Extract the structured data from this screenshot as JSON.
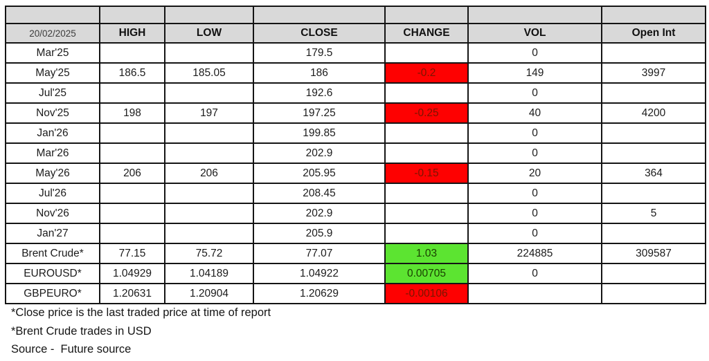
{
  "colors": {
    "header_bg": "#d9d9d9",
    "negative_bg": "#fe0101",
    "negative_text": "#7a1500",
    "positive_bg": "#5ce431",
    "positive_text": "#1a4000",
    "border": "#141414"
  },
  "table": {
    "date_label": "20/02/2025",
    "columns": [
      "HIGH",
      "LOW",
      "CLOSE",
      "CHANGE",
      "VOL",
      "Open Int"
    ],
    "rows": [
      {
        "label": "Mar'25",
        "high": "",
        "low": "",
        "close": "179.5",
        "change": "",
        "change_state": "none",
        "vol": "0",
        "open_int": ""
      },
      {
        "label": "May'25",
        "high": "186.5",
        "low": "185.05",
        "close": "186",
        "change": "-0.2",
        "change_state": "negative",
        "vol": "149",
        "open_int": "3997"
      },
      {
        "label": "Jul'25",
        "high": "",
        "low": "",
        "close": "192.6",
        "change": "",
        "change_state": "none",
        "vol": "0",
        "open_int": ""
      },
      {
        "label": "Nov'25",
        "high": "198",
        "low": "197",
        "close": "197.25",
        "change": "-0.25",
        "change_state": "negative",
        "vol": "40",
        "open_int": "4200"
      },
      {
        "label": "Jan'26",
        "high": "",
        "low": "",
        "close": "199.85",
        "change": "",
        "change_state": "none",
        "vol": "0",
        "open_int": ""
      },
      {
        "label": "Mar'26",
        "high": "",
        "low": "",
        "close": "202.9",
        "change": "",
        "change_state": "none",
        "vol": "0",
        "open_int": ""
      },
      {
        "label": "May'26",
        "high": "206",
        "low": "206",
        "close": "205.95",
        "change": "-0.15",
        "change_state": "negative",
        "vol": "20",
        "open_int": "364"
      },
      {
        "label": "Jul'26",
        "high": "",
        "low": "",
        "close": "208.45",
        "change": "",
        "change_state": "none",
        "vol": "0",
        "open_int": ""
      },
      {
        "label": "Nov'26",
        "high": "",
        "low": "",
        "close": "202.9",
        "change": "",
        "change_state": "none",
        "vol": "0",
        "open_int": "5"
      },
      {
        "label": "Jan'27",
        "high": "",
        "low": "",
        "close": "205.9",
        "change": "",
        "change_state": "none",
        "vol": "0",
        "open_int": ""
      },
      {
        "label": "Brent Crude*",
        "high": "77.15",
        "low": "75.72",
        "close": "77.07",
        "change": "1.03",
        "change_state": "positive",
        "vol": "224885",
        "open_int": "309587"
      },
      {
        "label": "EUROUSD*",
        "high": "1.04929",
        "low": "1.04189",
        "close": "1.04922",
        "change": "0.00705",
        "change_state": "positive",
        "vol": "0",
        "open_int": ""
      },
      {
        "label": "GBPEURO*",
        "high": "1.20631",
        "low": "1.20904",
        "close": "1.20629",
        "change": "-0.00106",
        "change_state": "negative",
        "vol": "",
        "open_int": ""
      }
    ]
  },
  "footnotes": [
    "*Close price is the last traded price at time of report",
    "*Brent Crude trades in USD",
    "Source -  Future source"
  ]
}
